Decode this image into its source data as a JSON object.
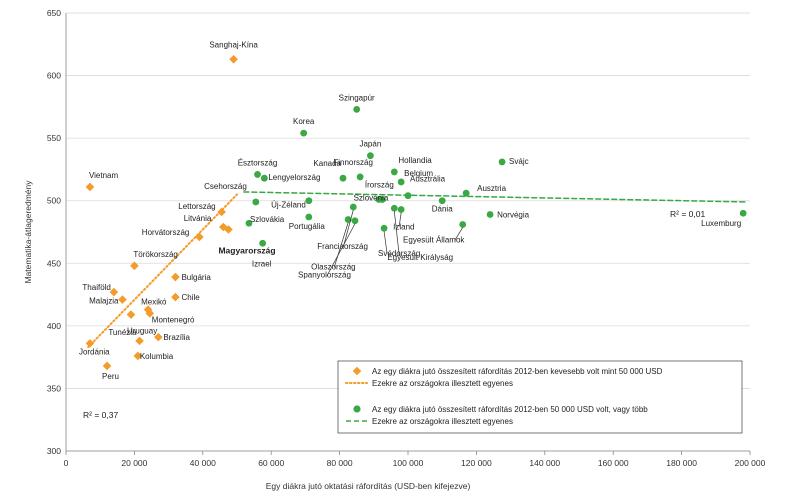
{
  "chart_data": {
    "type": "scatter",
    "title": "",
    "xlabel": "Egy diákra jutó oktatási ráfordítás (USD-ben kifejezve)",
    "ylabel": "Matematika-átlageredmény",
    "xlim": [
      0,
      200000
    ],
    "ylim": [
      300,
      650
    ],
    "x_ticks": [
      0,
      20000,
      40000,
      60000,
      80000,
      100000,
      120000,
      140000,
      160000,
      180000,
      200000
    ],
    "x_tick_labels": [
      "0",
      "20 000",
      "40 000",
      "60 000",
      "80 000",
      "100 000",
      "120 000",
      "140 000",
      "160 000",
      "180 000",
      "200 000"
    ],
    "y_ticks": [
      300,
      350,
      400,
      450,
      500,
      550,
      600,
      650
    ],
    "y_tick_labels": [
      "300",
      "350",
      "400",
      "450",
      "500",
      "550",
      "600",
      "650"
    ],
    "grid": "horizontal",
    "legend_position": "bottom-right",
    "colors": {
      "low": "#f39c2b",
      "high": "#3aa845",
      "text": "#222222",
      "grid": "#d9d9d9",
      "axis": "#888888"
    },
    "series": [
      {
        "name": "Az egy diákra jutó összesített ráfordítás 2012-ben kevesebb volt mint 50 000 USD",
        "marker": "diamond",
        "color": "#f39c2b",
        "points": [
          {
            "label": "Sanghaj-Kína",
            "x": 49000,
            "y": 613
          },
          {
            "label": "Vietnam",
            "x": 7000,
            "y": 511
          },
          {
            "label": "Lettország",
            "x": 45500,
            "y": 491
          },
          {
            "label": "Litvánia",
            "x": 46000,
            "y": 479
          },
          {
            "label": "Horvátország",
            "x": 39000,
            "y": 471
          },
          {
            "label": "Magyarország",
            "x": 47500,
            "y": 477
          },
          {
            "label": "Törökország",
            "x": 20000,
            "y": 448
          },
          {
            "label": "Bulgária",
            "x": 32000,
            "y": 439
          },
          {
            "label": "Thaiföld",
            "x": 14000,
            "y": 427
          },
          {
            "label": "Chile",
            "x": 32000,
            "y": 423
          },
          {
            "label": "Malajzia",
            "x": 16500,
            "y": 421
          },
          {
            "label": "Mexikó",
            "x": 24000,
            "y": 413
          },
          {
            "label": "Montenegró",
            "x": 24500,
            "y": 410
          },
          {
            "label": "Uruguay",
            "x": 19000,
            "y": 409
          },
          {
            "label": "Brazília",
            "x": 27000,
            "y": 391
          },
          {
            "label": "Tunézia",
            "x": 21500,
            "y": 388
          },
          {
            "label": "Jordánia",
            "x": 7000,
            "y": 386
          },
          {
            "label": "Kolumbia",
            "x": 21000,
            "y": 376
          },
          {
            "label": "Peru",
            "x": 12000,
            "y": 368
          }
        ]
      },
      {
        "name": "Az egy diákra jutó összesített ráfordítás 2012-ben 50 000 USD volt, vagy több",
        "marker": "circle",
        "color": "#3aa845",
        "points": [
          {
            "label": "Szingapúr",
            "x": 85000,
            "y": 573
          },
          {
            "label": "Korea",
            "x": 69500,
            "y": 554
          },
          {
            "label": "Japán",
            "x": 89000,
            "y": 536
          },
          {
            "label": "Svájc",
            "x": 127500,
            "y": 531
          },
          {
            "label": "Hollandia",
            "x": 96000,
            "y": 523
          },
          {
            "label": "Észtország",
            "x": 56000,
            "y": 521
          },
          {
            "label": "Finnország",
            "x": 86000,
            "y": 519
          },
          {
            "label": "Kanada",
            "x": 81000,
            "y": 518
          },
          {
            "label": "Lengyelország",
            "x": 58000,
            "y": 518
          },
          {
            "label": "Belgium",
            "x": 98000,
            "y": 515
          },
          {
            "label": "Ausztria",
            "x": 117000,
            "y": 506
          },
          {
            "label": "Írország",
            "x": 92500,
            "y": 501
          },
          {
            "label": "Ausztrália",
            "x": 100000,
            "y": 504
          },
          {
            "label": "Szlovénia",
            "x": 91500,
            "y": 501
          },
          {
            "label": "Csehország",
            "x": 55500,
            "y": 499
          },
          {
            "label": "Új-Zéland",
            "x": 71000,
            "y": 500
          },
          {
            "label": "Dánia",
            "x": 110000,
            "y": 500
          },
          {
            "label": "Norvégia",
            "x": 124000,
            "y": 489
          },
          {
            "label": "Luxemburg",
            "x": 198000,
            "y": 490
          },
          {
            "label": "Szlovákia",
            "x": 53500,
            "y": 482
          },
          {
            "label": "Portugália",
            "x": 71000,
            "y": 487
          },
          {
            "label": "Izland",
            "x": 98000,
            "y": 493
          },
          {
            "label": "Svédország",
            "x": 93000,
            "y": 478
          },
          {
            "label": "Egyesült Államok",
            "x": 116000,
            "y": 481
          },
          {
            "label": "Egyesült Királyság",
            "x": 96000,
            "y": 494
          },
          {
            "label": "Franciaország",
            "x": 84000,
            "y": 495
          },
          {
            "label": "Olaszország",
            "x": 82500,
            "y": 485
          },
          {
            "label": "Spanyolország",
            "x": 84500,
            "y": 484
          },
          {
            "label": "Izrael",
            "x": 57500,
            "y": 466
          }
        ]
      }
    ],
    "trend_lines": [
      {
        "name": "Ezekre az országokra illesztett egyenes",
        "color": "#f39c2b",
        "style": "dotted",
        "x1": 6500,
        "y1": 383,
        "x2": 50000,
        "y2": 505,
        "r2": "R² = 0,37"
      },
      {
        "name": "Ezekre az országokra illesztett egyenes",
        "color": "#3aa845",
        "style": "dashed",
        "x1": 52000,
        "y1": 507,
        "x2": 199000,
        "y2": 499,
        "r2": "R² = 0,01"
      }
    ]
  }
}
